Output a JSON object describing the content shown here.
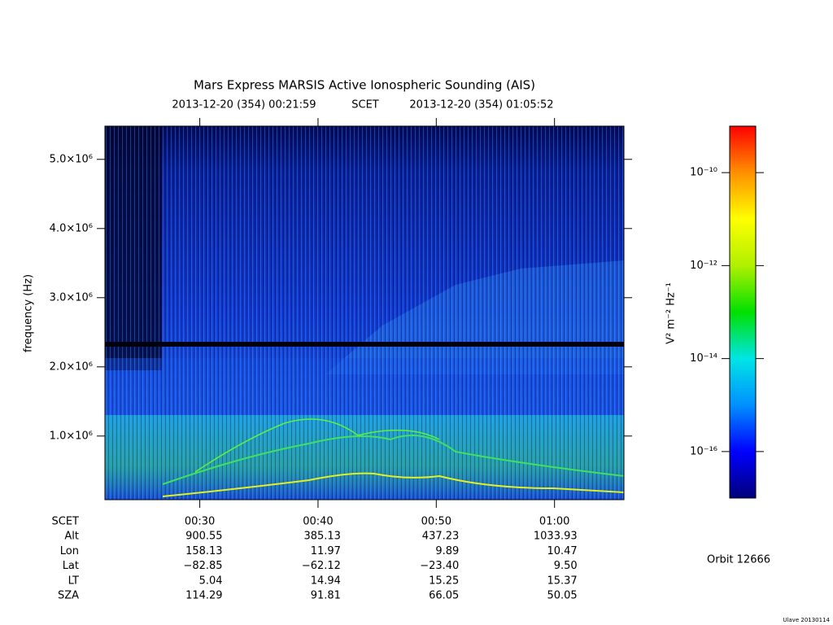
{
  "chart_data": {
    "type": "spectrogram",
    "title": "Mars Express MARSIS Active Ionospheric Sounding (AIS)",
    "subtitle": {
      "start": "2013-12-20 (354) 00:21:59",
      "frame": "SCET",
      "end": "2013-12-20 (354) 01:05:52"
    },
    "y_label": "frequency (Hz)",
    "xlim": [
      21.98,
      65.87
    ],
    "xticks": [
      {
        "value": 30,
        "label": "00:30"
      },
      {
        "value": 40,
        "label": "00:40"
      },
      {
        "value": 50,
        "label": "00:50"
      },
      {
        "value": 60,
        "label": "01:00"
      }
    ],
    "ylim": [
      80000,
      5480000
    ],
    "yticks": [
      {
        "value": 1000000,
        "label": "1.0×10⁶"
      },
      {
        "value": 2000000,
        "label": "2.0×10⁶"
      },
      {
        "value": 3000000,
        "label": "3.0×10⁶"
      },
      {
        "value": 4000000,
        "label": "4.0×10⁶"
      },
      {
        "value": 5000000,
        "label": "5.0×10⁶"
      }
    ],
    "colorbar": {
      "label": "V² m⁻² Hz⁻¹",
      "log": true,
      "zlim": [
        1e-17,
        1e-09
      ],
      "ticks": [
        {
          "value": 1e-16,
          "label": "10⁻¹⁶"
        },
        {
          "value": 1e-14,
          "label": "10⁻¹⁴"
        },
        {
          "value": 1e-12,
          "label": "10⁻¹²"
        },
        {
          "value": 1e-10,
          "label": "10⁻¹⁰"
        }
      ],
      "colors": [
        "#00007a",
        "#0000ff",
        "#0090ff",
        "#00e5e5",
        "#00e000",
        "#b0f000",
        "#ffff00",
        "#ff9000",
        "#ff0000"
      ]
    }
  },
  "ephemeris": {
    "header": "SCET",
    "rows": [
      {
        "label": "Alt",
        "values": [
          "900.55",
          "385.13",
          "437.23",
          "1033.93"
        ]
      },
      {
        "label": "Lon",
        "values": [
          "158.13",
          "11.97",
          "9.89",
          "10.47"
        ]
      },
      {
        "label": "Lat",
        "values": [
          "−82.85",
          "−62.12",
          "−23.40",
          "9.50"
        ]
      },
      {
        "label": "LT",
        "values": [
          "5.04",
          "14.94",
          "15.25",
          "15.37"
        ]
      },
      {
        "label": "SZA",
        "values": [
          "114.29",
          "91.81",
          "66.05",
          "50.05"
        ]
      }
    ]
  },
  "orbit": "Orbit 12666",
  "footer": "Ulave 20130114"
}
